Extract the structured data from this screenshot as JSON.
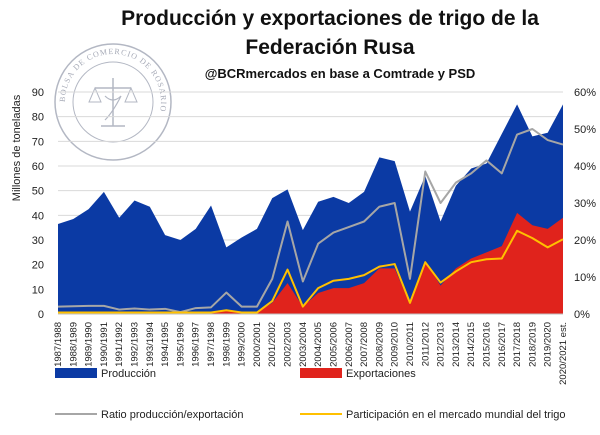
{
  "chart_data": {
    "type": "area",
    "title_lines": [
      "Producción y exportaciones de trigo de la",
      "Federación Rusa"
    ],
    "subtitle": "@BCRmercados en base a Comtrade y PSD",
    "ylabel": "Millones de toneladas",
    "ylim": [
      0,
      90
    ],
    "y_ticks": [
      0,
      10,
      20,
      30,
      40,
      50,
      60,
      70,
      80,
      90
    ],
    "y2lim": [
      0,
      0.6
    ],
    "y2_ticks": [
      "0%",
      "10%",
      "20%",
      "30%",
      "40%",
      "50%",
      "60%"
    ],
    "categories": [
      "1987/1988",
      "1988/1989",
      "1989/1990",
      "1990/1991",
      "1991/1992",
      "1992/1993",
      "1993/1994",
      "1994/1995",
      "1995/1996",
      "1996/1997",
      "1997/1998",
      "1998/1999",
      "1999/2000",
      "2000/2001",
      "2001/2002",
      "2002/2003",
      "2003/2004",
      "2004/2005",
      "2005/2006",
      "2006/2007",
      "2007/2008",
      "2008/2009",
      "2009/2010",
      "2010/2011",
      "2011/2012",
      "2012/2013",
      "2013/2014",
      "2014/2015",
      "2015/2016",
      "2016/2017",
      "2017/2018",
      "2018/2019",
      "2019/2020",
      "2020/2021 est."
    ],
    "series": [
      {
        "name": "Producción",
        "axis": "left",
        "kind": "area",
        "color": "#0b3aa4",
        "values": [
          36.5,
          38.5,
          42.5,
          49.5,
          39,
          46,
          43.5,
          32,
          30,
          34.5,
          44,
          27,
          31,
          34.5,
          47,
          50.5,
          34,
          45.5,
          47.5,
          45,
          49.5,
          63.5,
          62,
          41.5,
          56,
          37.5,
          52,
          59,
          61,
          73,
          85,
          72,
          73.5,
          85
        ]
      },
      {
        "name": "Exportaciones",
        "axis": "left",
        "kind": "area",
        "color": "#e0231c",
        "values": [
          0.5,
          0.5,
          0.5,
          0.5,
          0.5,
          0.5,
          0.5,
          0.5,
          0.5,
          0.5,
          0.5,
          1.5,
          0.5,
          0.5,
          4.5,
          12.5,
          3,
          8.5,
          10.5,
          10.5,
          12.5,
          18.5,
          18.5,
          4,
          21.5,
          11.5,
          18.5,
          22.5,
          25,
          27.5,
          41,
          36,
          34.5,
          39
        ]
      },
      {
        "name": "Ratio producción/exportación",
        "axis": "right",
        "kind": "line",
        "color": "#a6a6a6",
        "values": [
          0.02,
          0.021,
          0.022,
          0.022,
          0.012,
          0.015,
          0.012,
          0.014,
          0.005,
          0.016,
          0.018,
          0.058,
          0.02,
          0.02,
          0.095,
          0.25,
          0.088,
          0.19,
          0.22,
          0.235,
          0.25,
          0.29,
          0.3,
          0.095,
          0.385,
          0.3,
          0.355,
          0.38,
          0.415,
          0.38,
          0.485,
          0.5,
          0.47,
          0.458
        ]
      },
      {
        "name": "Participación en el mercado mundial del trigo",
        "axis": "right",
        "kind": "line",
        "color": "#ffc000",
        "values": [
          0.004,
          0.004,
          0.004,
          0.004,
          0.004,
          0.004,
          0.004,
          0.004,
          0.004,
          0.004,
          0.004,
          0.01,
          0.004,
          0.004,
          0.035,
          0.12,
          0.02,
          0.07,
          0.09,
          0.095,
          0.105,
          0.128,
          0.135,
          0.03,
          0.14,
          0.085,
          0.115,
          0.14,
          0.148,
          0.15,
          0.225,
          0.205,
          0.18,
          0.202
        ]
      }
    ],
    "legend_position": "bottom"
  },
  "watermark": {
    "text": "BOLSA DE COMERCIO DE ROSARIO"
  }
}
